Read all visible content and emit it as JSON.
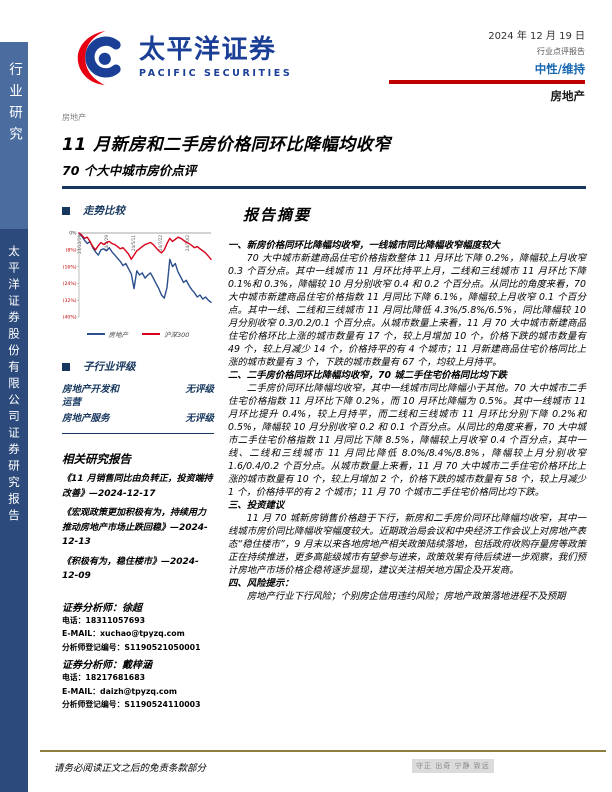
{
  "sidebar": {
    "top": "行业研究",
    "bottom": "太平洋证券股份有限公司证券研究报告"
  },
  "header": {
    "brand_cn": "太平洋证券",
    "brand_en": "PACIFIC SECURITIES",
    "date": "2024 年 12 月 19 日",
    "report_type": "行业点评报告",
    "rating": "中性/维持",
    "sector": "房地产",
    "accent_red": "#C00000",
    "brand_blue": "#1B3F96",
    "rating_blue": "#1766B0"
  },
  "title_block": {
    "eyebrow": "房地产",
    "title": "11 月新房和二手房价格同环比降幅均收窄",
    "subtitle": "70 个大中城市房价点评"
  },
  "left_column": {
    "trend_header": "走势比较",
    "subrating_header": "子行业评级",
    "ratings": [
      {
        "name": "房地产开发和运营",
        "value": "无评级"
      },
      {
        "name": "房地产服务",
        "value": "无评级"
      }
    ],
    "related_header": "相关研究报告",
    "related_reports": [
      "《11 月销售同比由负转正，投资端持改善》—2024-12-17",
      "《宏观政策更加积极有为，持续用力推动房地产市场止跌回稳》—2024-12-13",
      "《积极有为，稳住楼市》—2024-12-09"
    ],
    "analysts": [
      {
        "role": "证券分析师：",
        "name": "徐超",
        "phone_label": "电话：",
        "phone": "18311057693",
        "email_label": "E-MAIL：",
        "email": "xuchao@tpyzq.com",
        "reg_label": "分析师登记编号：",
        "reg": "S1190521050001"
      },
      {
        "role": "证券分析师：",
        "name": "戴梓涵",
        "phone_label": "电话：",
        "phone": "18217681683",
        "email_label": "E-MAIL：",
        "email": "daizh@tpyzq.com",
        "reg_label": "分析师登记编号：",
        "reg": "S1190524110003"
      }
    ]
  },
  "summary": {
    "header": "报告摘要",
    "sections": [
      {
        "heading": "一、新房价格同环比降幅均收窄，一线城市同比降幅收窄幅度较大",
        "body": "70 大中城市新建商品住宅价格指数整体 11 月环比下降 0.2%，降幅较上月收窄 0.3 个百分点。其中一线城市 11 月环比持平上月，二线和三线城市 11 月环比下降 0.1%和 0.3%，降幅较 10 月分别收窄 0.4 和 0.2 个百分点。从同比的角度来看，70 大中城市新建商品住宅价格指数 11 月同比下降 6.1%，降幅较上月收窄 0.1 个百分点。其中一线、二线和三线城市 11 月同比降低 4.3%/5.8%/6.5%，同比降幅较 10 月分别收窄 0.3/0.2/0.1 个百分点。从城市数量上来看，11 月 70 大中城市新建商品住宅价格环比上涨的城市数量有 17 个，较上月增加 10 个，价格下跌的城市数量有 49 个，较上月减少 14 个，价格持平的有 4 个城市；11 月新建商品住宅价格同比上涨的城市数量有 3 个，下跌的城市数量有 67 个，均较上月持平。"
      },
      {
        "heading": "二、二手房价格同环比降幅均收窄，70 城二手住宅价格同比均下跌",
        "body": "二手房价同环比降幅均收窄，其中一线城市同比降幅小于其他。70 大中城市二手住宅价格指数 11 月环比下降 0.2%，而 10 月环比降幅为 0.5%。其中一线城市 11 月环比提升 0.4%，较上月持平，而二线和三线城市 11 月环比分别下降 0.2%和 0.5%，降幅较 10 月分别收窄 0.2 和 0.1 个百分点。从同比的角度来看，70 大中城市二手住宅价格指数 11 月同比下降 8.5%，降幅较上月收窄 0.4 个百分点，其中一线、二线和三线城市 11 月同比降低 8.0%/8.4%/8.8%，降幅较上月分别收窄 1.6/0.4/0.2 个百分点。从城市数量上来看，11 月 70 大中城市二手住宅价格环比上涨的城市数量有 10 个，较上月增加 2 个，价格下跌的城市数量有 58 个，较上月减少 1 个，价格持平的有 2 个城市；11 月 70 个城市二手住宅价格同比均下跌。"
      },
      {
        "heading": "三、投资建议",
        "body": "11 月 70 城新房销售价格趋于下行，新房和二手房价同环比降幅均收窄，其中一线城市房价同比降幅收窄幅度较大。近期政治局会议和中央经济工作会议上对房地产表态“稳住楼市”，9 月末以来各地房地产相关政策陆续落地，包括政府收购存量房等政策正在持续推进，更多高能级城市有望参与进来，政策效果有待后续进一步观察，我们预计房地产市场价格企稳将逐步显现，建议关注相关地方国企及开发商。"
      },
      {
        "heading": "四、风险提示：",
        "body": "房地产行业下行风险；个别房企信用违约风险；房地产政策落地进程不及预期"
      }
    ]
  },
  "footer": {
    "left": "请务必阅读正文之后的免责条款部分",
    "right": "守正 出奇 宁静 致远"
  },
  "chart_data": {
    "type": "line",
    "title": "走势比较",
    "xlabel": "",
    "ylabel": "",
    "ylim": [
      -40,
      0
    ],
    "grid": "zero-line only",
    "legend_position": "bottom",
    "y_ticks": [
      {
        "v": 0,
        "label": "0%"
      },
      {
        "v": -8,
        "label": "(8%)"
      },
      {
        "v": -16,
        "label": "(16%)"
      },
      {
        "v": -24,
        "label": "(24%)"
      },
      {
        "v": -32,
        "label": "(32%)"
      },
      {
        "v": -40,
        "label": "(40%)"
      }
    ],
    "x_ticks": [
      {
        "pos": 0.0,
        "label": "23/12/19"
      },
      {
        "pos": 0.205,
        "label": "24/2/29"
      },
      {
        "pos": 0.41,
        "label": "24/5/11"
      },
      {
        "pos": 0.615,
        "label": "24/7/22"
      },
      {
        "pos": 0.82,
        "label": "24/10/2"
      }
    ],
    "series": [
      {
        "name": "房地产",
        "color": "#2B4E8C",
        "values": [
          0,
          -1.5,
          -3.5,
          -5,
          -4,
          -7,
          -9,
          -10.5,
          -8,
          -7.5,
          -8.5,
          -7,
          -9,
          -10.5,
          -12,
          -13.5,
          -15.5,
          -14.5,
          -17,
          -19.5,
          -26.5,
          -18,
          -20,
          -19,
          -21.5,
          -20,
          -19,
          -21.5,
          -24,
          -26.5,
          -29.5,
          -31,
          -26,
          -12.5,
          -16,
          -14.5,
          -18.5,
          -21,
          -23.5,
          -22.5,
          -25,
          -27,
          -28.5,
          -30.5,
          -29.5,
          -31.5,
          -30.5,
          -32,
          -33
        ]
      },
      {
        "name": "沪深300",
        "color": "#D9001B",
        "values": [
          0,
          -1,
          -2.5,
          -2,
          -4,
          -6.5,
          -8,
          -6,
          -4.5,
          -5.5,
          -4.5,
          -4,
          -5,
          -5.5,
          -6.5,
          -7.5,
          -7,
          -8.5,
          -10,
          -12.5,
          -10.5,
          -8.5,
          -7.5,
          -6.5,
          -5.5,
          -5,
          -4.5,
          -5.5,
          -7,
          -8.5,
          -9.5,
          -8,
          -5,
          -2.5,
          -4,
          -3,
          -2,
          -2.5,
          -3.5,
          -4.5,
          -5,
          -6,
          -7,
          -6.5,
          -7.5,
          -8.5,
          -9.5,
          -11,
          -12.5
        ]
      }
    ]
  }
}
